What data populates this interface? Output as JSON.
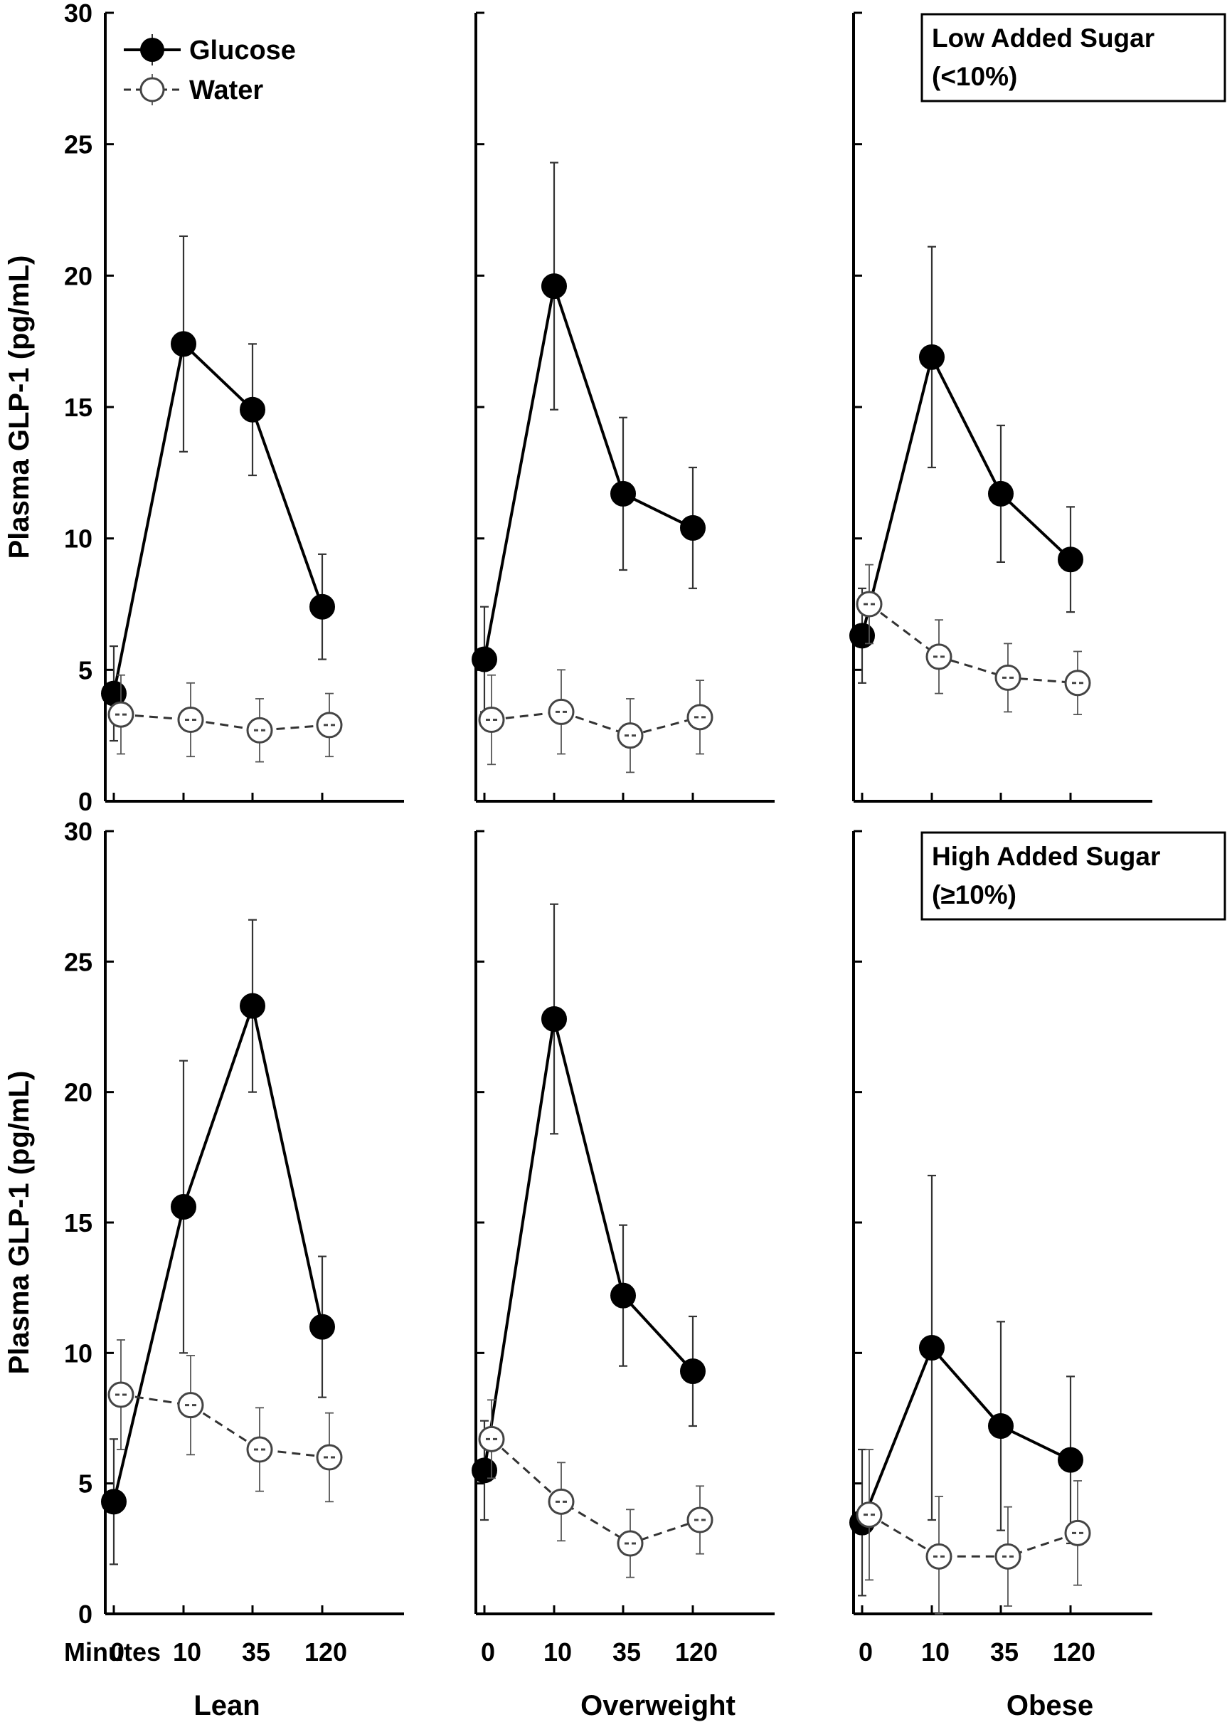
{
  "chart_data": {
    "type": "line",
    "ylabel": "Plasma GLP-1 (pg/mL)",
    "xaxis_prefix": "Minutes",
    "ylim": [
      0,
      30
    ],
    "yticks": [
      "0",
      "5",
      "10",
      "15",
      "20",
      "25",
      "30"
    ],
    "x_categories": [
      "0",
      "10",
      "35",
      "120"
    ],
    "legend": {
      "position": "top-left",
      "entries": [
        {
          "name": "Glucose",
          "style": "filled-circle-solid"
        },
        {
          "name": "Water",
          "style": "open-circle-dashed"
        }
      ]
    },
    "columns": [
      "Lean",
      "Overweight",
      "Obese"
    ],
    "rows": [
      {
        "name": "Low Added Sugar",
        "label_lines": [
          "Low Added Sugar",
          "(<10%)"
        ],
        "panels": [
          {
            "column": "Lean",
            "series": [
              {
                "name": "Glucose",
                "values": [
                  4.1,
                  17.4,
                  14.9,
                  7.4
                ],
                "err": [
                  1.8,
                  4.1,
                  2.5,
                  2.0
                ]
              },
              {
                "name": "Water",
                "values": [
                  3.3,
                  3.1,
                  2.7,
                  2.9
                ],
                "err": [
                  1.5,
                  1.4,
                  1.2,
                  1.2
                ]
              }
            ]
          },
          {
            "column": "Overweight",
            "series": [
              {
                "name": "Glucose",
                "values": [
                  5.4,
                  19.6,
                  11.7,
                  10.4
                ],
                "err": [
                  2.0,
                  4.7,
                  2.9,
                  2.3
                ]
              },
              {
                "name": "Water",
                "values": [
                  3.1,
                  3.4,
                  2.5,
                  3.2
                ],
                "err": [
                  1.7,
                  1.6,
                  1.4,
                  1.4
                ]
              }
            ]
          },
          {
            "column": "Obese",
            "series": [
              {
                "name": "Glucose",
                "values": [
                  6.3,
                  16.9,
                  11.7,
                  9.2
                ],
                "err": [
                  1.8,
                  4.2,
                  2.6,
                  2.0
                ]
              },
              {
                "name": "Water",
                "values": [
                  7.5,
                  5.5,
                  4.7,
                  4.5
                ],
                "err": [
                  1.5,
                  1.4,
                  1.3,
                  1.2
                ]
              }
            ]
          }
        ]
      },
      {
        "name": "High Added Sugar",
        "label_lines": [
          "High Added Sugar",
          "(≥10%)"
        ],
        "panels": [
          {
            "column": "Lean",
            "series": [
              {
                "name": "Glucose",
                "values": [
                  4.3,
                  15.6,
                  23.3,
                  11.0
                ],
                "err": [
                  2.4,
                  5.6,
                  3.3,
                  2.7
                ]
              },
              {
                "name": "Water",
                "values": [
                  8.4,
                  8.0,
                  6.3,
                  6.0
                ],
                "err": [
                  2.1,
                  1.9,
                  1.6,
                  1.7
                ]
              }
            ]
          },
          {
            "column": "Overweight",
            "series": [
              {
                "name": "Glucose",
                "values": [
                  5.5,
                  22.8,
                  12.2,
                  9.3
                ],
                "err": [
                  1.9,
                  4.4,
                  2.7,
                  2.1
                ]
              },
              {
                "name": "Water",
                "values": [
                  6.7,
                  4.3,
                  2.7,
                  3.6
                ],
                "err": [
                  1.5,
                  1.5,
                  1.3,
                  1.3
                ]
              }
            ]
          },
          {
            "column": "Obese",
            "series": [
              {
                "name": "Glucose",
                "values": [
                  3.5,
                  10.2,
                  7.2,
                  5.9
                ],
                "err": [
                  2.8,
                  6.6,
                  4.0,
                  3.2
                ]
              },
              {
                "name": "Water",
                "values": [
                  3.8,
                  2.2,
                  2.2,
                  3.1
                ],
                "err": [
                  2.5,
                  2.3,
                  1.9,
                  2.0
                ]
              }
            ]
          }
        ]
      }
    ]
  }
}
